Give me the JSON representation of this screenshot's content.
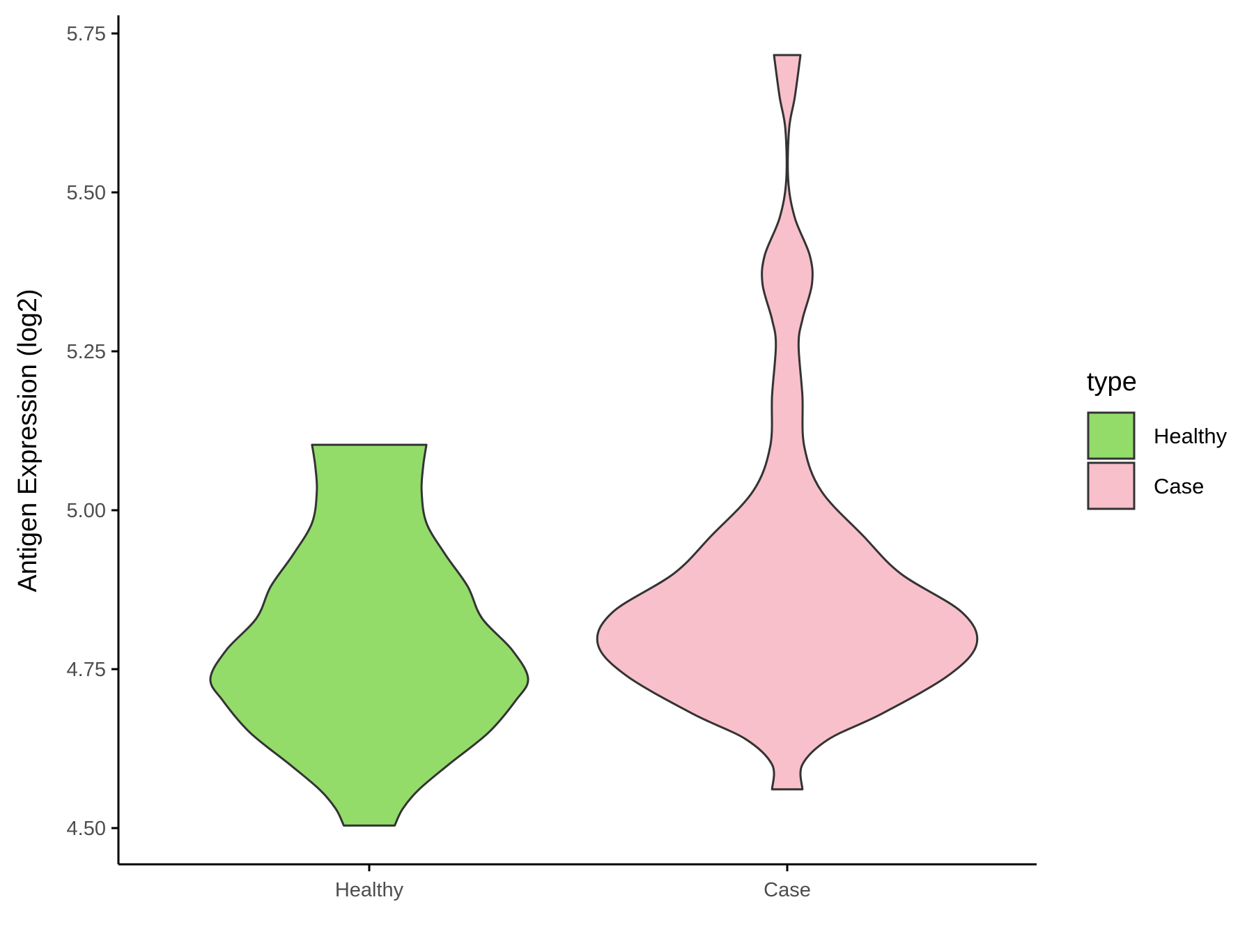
{
  "chart_data": {
    "type": "violin",
    "title": "",
    "xlabel": "",
    "ylabel": "Antigen Expression (log2)",
    "ylim": [
      4.445,
      5.775
    ],
    "yticks": [
      "4.50",
      "4.75",
      "5.00",
      "5.25",
      "5.50",
      "5.75"
    ],
    "categories": [
      "Healthy",
      "Case"
    ],
    "grid": false,
    "legend": {
      "title": "type",
      "position": "right",
      "entries": [
        {
          "label": "Healthy",
          "color": "#93DC6A"
        },
        {
          "label": "Case",
          "color": "#F8C0CB"
        }
      ]
    },
    "series": [
      {
        "category": "Healthy",
        "color": "#93DC6A",
        "min": 4.504,
        "max": 5.103,
        "density_profile": [
          [
            4.504,
            0.16
          ],
          [
            4.53,
            0.21
          ],
          [
            4.56,
            0.31
          ],
          [
            4.6,
            0.5
          ],
          [
            4.65,
            0.75
          ],
          [
            4.7,
            0.92
          ],
          [
            4.735,
            1.0
          ],
          [
            4.78,
            0.9
          ],
          [
            4.83,
            0.71
          ],
          [
            4.88,
            0.62
          ],
          [
            4.93,
            0.48
          ],
          [
            4.98,
            0.36
          ],
          [
            5.03,
            0.33
          ],
          [
            5.07,
            0.34
          ],
          [
            5.103,
            0.36
          ]
        ]
      },
      {
        "category": "Case",
        "color": "#F8C0CB",
        "min": 4.561,
        "max": 5.716,
        "density_profile": [
          [
            4.561,
            0.08
          ],
          [
            4.6,
            0.08
          ],
          [
            4.64,
            0.22
          ],
          [
            4.68,
            0.5
          ],
          [
            4.74,
            0.85
          ],
          [
            4.79,
            1.0
          ],
          [
            4.84,
            0.92
          ],
          [
            4.9,
            0.6
          ],
          [
            4.96,
            0.4
          ],
          [
            5.03,
            0.18
          ],
          [
            5.1,
            0.09
          ],
          [
            5.18,
            0.08
          ],
          [
            5.26,
            0.06
          ],
          [
            5.3,
            0.08
          ],
          [
            5.355,
            0.13
          ],
          [
            5.4,
            0.12
          ],
          [
            5.46,
            0.04
          ],
          [
            5.52,
            0.005
          ],
          [
            5.6,
            0.01
          ],
          [
            5.65,
            0.04
          ],
          [
            5.716,
            0.07
          ]
        ]
      }
    ]
  }
}
